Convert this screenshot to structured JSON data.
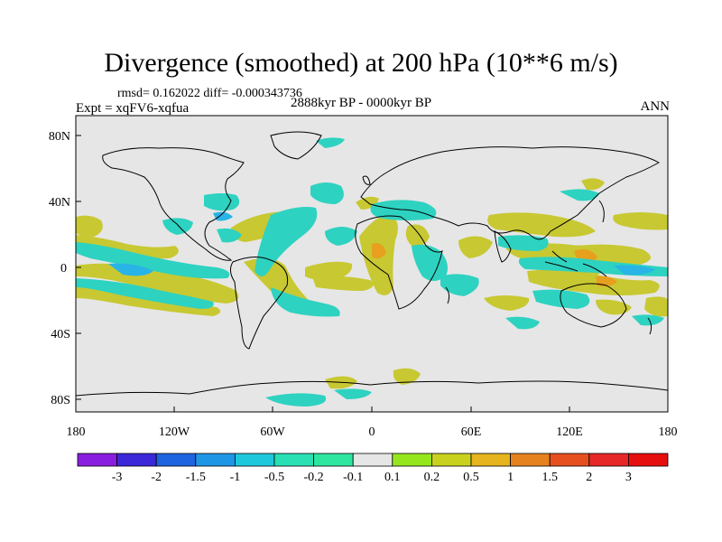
{
  "title": "Divergence (smoothed) at 200 hPa (10**6 m/s)",
  "stats": "rmsd= 0.162022 diff= -0.000343736",
  "experiment": "Expt = xqFV6-xqfua",
  "period": "2888kyr BP - 0000kyr BP",
  "season": "ANN",
  "lat_labels": [
    "80N",
    "40N",
    "0",
    "40S",
    "80S"
  ],
  "lon_labels": [
    "180",
    "120W",
    "60W",
    "0",
    "60E",
    "120E",
    "180"
  ],
  "colorbar": {
    "labels": [
      "-3",
      "-2",
      "-1.5",
      "-1",
      "-0.5",
      "-0.2",
      "-0.1",
      "0.1",
      "0.2",
      "0.5",
      "1",
      "1.5",
      "2",
      "3"
    ],
    "colors": [
      "#8a1ee0",
      "#3c28d8",
      "#1e64e0",
      "#1e96e6",
      "#1ec8dc",
      "#28e0b4",
      "#2ee6a0",
      "#e6e6e6",
      "#96e61e",
      "#c8d21e",
      "#e6b41e",
      "#e6821e",
      "#e6501e",
      "#e62828",
      "#e60f0f"
    ]
  },
  "colors": {
    "background": "#e6e6e6",
    "coast": "#000000"
  }
}
